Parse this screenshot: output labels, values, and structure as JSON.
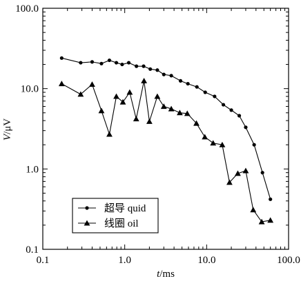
{
  "chart_data": {
    "type": "line",
    "x_scale": "log",
    "y_scale": "log",
    "xlim": [
      0.1,
      100.0
    ],
    "ylim": [
      0.1,
      100.0
    ],
    "xlabel_var": "t",
    "xlabel_unit": "/ms",
    "ylabel_var": "V",
    "ylabel_unit": "/μV",
    "x_ticks": [
      "0.1",
      "1.0",
      "10.0",
      "100.0"
    ],
    "y_ticks": [
      "0.1",
      "1.0",
      "10.0",
      "100.0"
    ],
    "grid": false,
    "legend_position": "bottom-left",
    "series": [
      {
        "name": "超导 quid",
        "marker": "circle",
        "color": "#000000",
        "x": [
          0.17,
          0.29,
          0.4,
          0.52,
          0.65,
          0.79,
          0.93,
          1.12,
          1.39,
          1.7,
          2.05,
          2.5,
          3.0,
          3.7,
          4.8,
          5.9,
          7.6,
          9.6,
          12.5,
          16.0,
          20.0,
          25.0,
          30.0,
          38.0,
          48.0,
          60.0
        ],
        "y": [
          24.0,
          21.0,
          21.5,
          20.5,
          22.5,
          21.0,
          20.0,
          21.0,
          19.0,
          19.0,
          17.5,
          17.0,
          15.0,
          14.5,
          12.5,
          11.5,
          10.5,
          9.0,
          8.0,
          6.3,
          5.4,
          4.6,
          3.3,
          2.0,
          0.9,
          0.42
        ]
      },
      {
        "name": "线圈 oil",
        "marker": "triangle",
        "color": "#000000",
        "x": [
          0.17,
          0.29,
          0.4,
          0.52,
          0.65,
          0.79,
          0.95,
          1.15,
          1.38,
          1.72,
          2.0,
          2.5,
          3.0,
          3.7,
          4.7,
          5.8,
          7.5,
          9.5,
          12.0,
          15.5,
          19.0,
          24.0,
          30.0,
          37.0,
          47.0,
          60.0
        ],
        "y": [
          11.5,
          8.5,
          11.3,
          5.3,
          2.7,
          8.0,
          6.8,
          9.0,
          4.2,
          12.5,
          3.9,
          8.0,
          6.0,
          5.6,
          5.0,
          4.9,
          3.7,
          2.5,
          2.1,
          2.0,
          0.68,
          0.88,
          0.95,
          0.31,
          0.22,
          0.23
        ]
      }
    ]
  }
}
